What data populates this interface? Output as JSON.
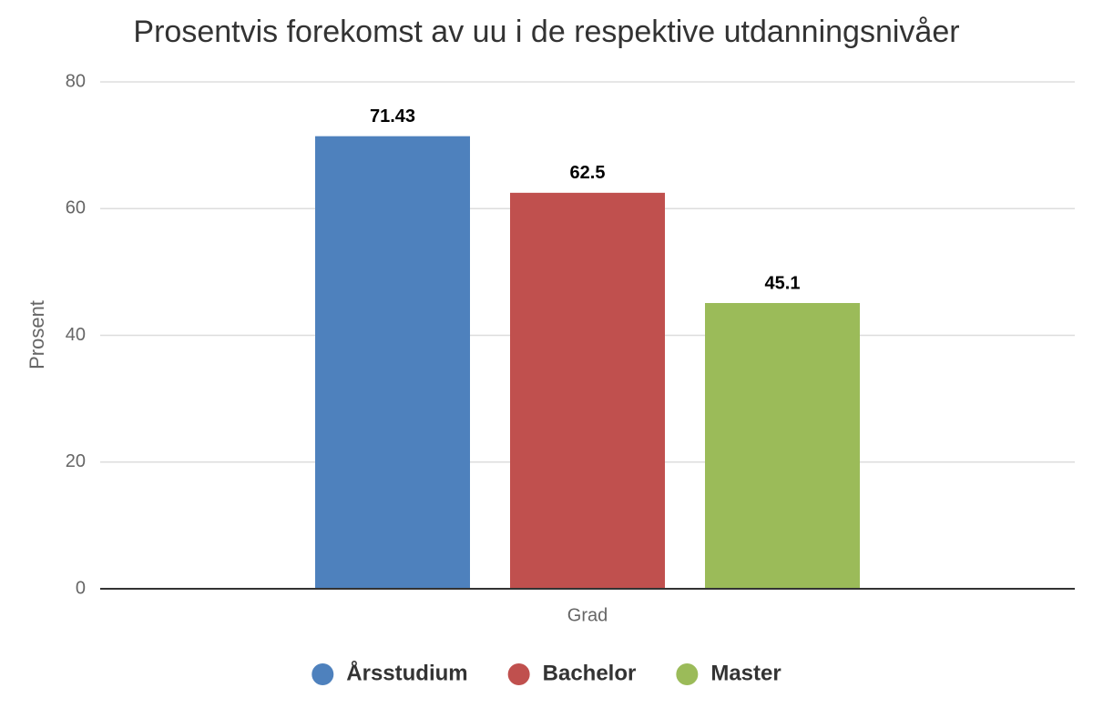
{
  "chart_data": {
    "type": "bar",
    "title": "Prosentvis forekomst av uu i de respektive utdanningsnivåer",
    "y_label": "Prosent",
    "categories": [
      "Grad"
    ],
    "series": [
      {
        "name": "Årsstudium",
        "color": "#4e81bd",
        "values": [
          71.43
        ]
      },
      {
        "name": "Bachelor",
        "color": "#c0504e",
        "values": [
          62.5
        ]
      },
      {
        "name": "Master",
        "color": "#9bbb59",
        "values": [
          45.1
        ]
      }
    ],
    "ylim": [
      0,
      80
    ],
    "yticks": [
      0,
      20,
      40,
      60,
      80
    ],
    "grid": true,
    "legend": "bottom"
  }
}
